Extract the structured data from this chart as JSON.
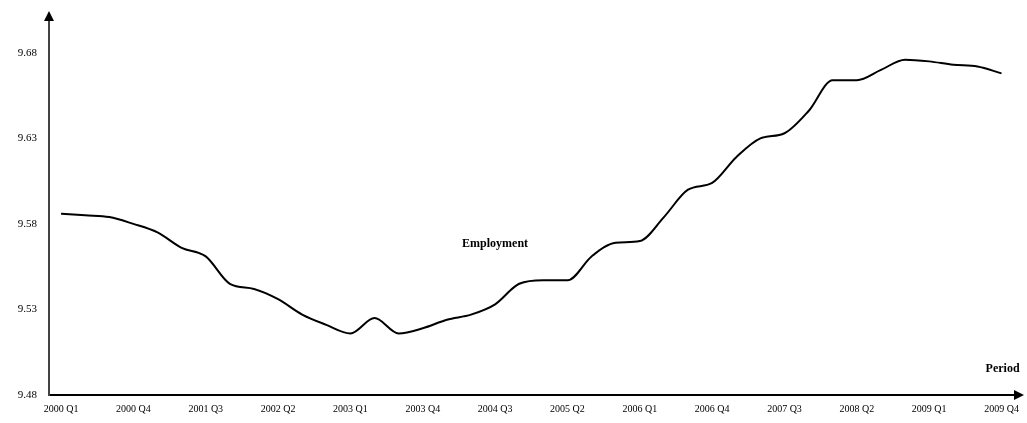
{
  "chart_data": {
    "type": "line",
    "categories": [
      "2000 Q1",
      null,
      null,
      "2000 Q4",
      null,
      null,
      "2001 Q3",
      null,
      null,
      "2002 Q2",
      null,
      null,
      "2003 Q1",
      null,
      null,
      "2003 Q4",
      null,
      null,
      "2004 Q3",
      null,
      null,
      "2005 Q2",
      null,
      null,
      "2006 Q1",
      null,
      null,
      "2006 Q4",
      null,
      null,
      "2007 Q3",
      null,
      null,
      "2008 Q2",
      null,
      null,
      "2009 Q1",
      null,
      null,
      "2009 Q4"
    ],
    "series": [
      {
        "name": "Employment",
        "color": "#000000",
        "values": [
          9.586,
          9.585,
          9.584,
          9.58,
          9.575,
          9.566,
          9.561,
          9.545,
          9.542,
          9.536,
          9.527,
          9.521,
          9.516,
          9.525,
          9.516,
          9.519,
          9.524,
          9.527,
          9.533,
          9.545,
          9.547,
          9.547,
          9.561,
          9.569,
          9.57,
          9.584,
          9.6,
          9.604,
          9.619,
          9.63,
          9.633,
          9.646,
          9.664,
          9.664,
          9.67,
          9.676,
          9.675,
          9.673,
          9.672,
          9.668
        ]
      }
    ],
    "xlabel": "Period",
    "ylim": [
      9.48,
      9.7
    ],
    "yticks": [
      9.48,
      9.53,
      9.58,
      9.63,
      9.68
    ],
    "marker": "none"
  }
}
